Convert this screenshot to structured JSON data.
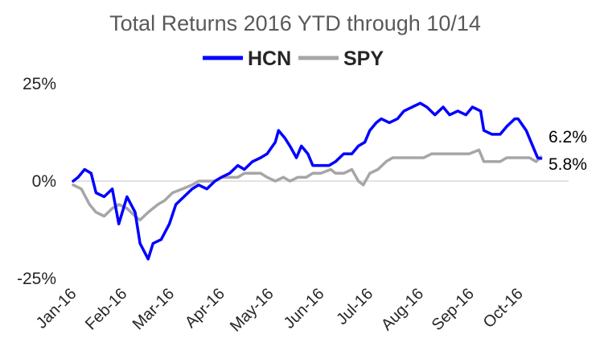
{
  "chart_data": {
    "type": "line",
    "title": "Total Returns 2016 YTD through 10/14",
    "xlabel": "",
    "ylabel": "",
    "y_ticks": [
      "25%",
      "0%",
      "-25%"
    ],
    "y_tick_values": [
      25,
      0,
      -25
    ],
    "ylim": [
      -25,
      25
    ],
    "x_ticks": [
      "Jan-16",
      "Feb-16",
      "Mar-16",
      "Apr-16",
      "May-16",
      "Jun-16",
      "Jul-16",
      "Aug-16",
      "Sep-16",
      "Oct-16"
    ],
    "xlim": [
      "2016-01-01",
      "2016-10-31"
    ],
    "legend_position": "top",
    "grid": false,
    "series": [
      {
        "name": "HCN",
        "color": "#0000ff",
        "end_label": "5.8%",
        "points": [
          [
            "2016-01-01",
            0
          ],
          [
            "2016-01-04",
            1
          ],
          [
            "2016-01-08",
            3
          ],
          [
            "2016-01-12",
            2
          ],
          [
            "2016-01-15",
            -3
          ],
          [
            "2016-01-20",
            -4
          ],
          [
            "2016-01-25",
            -2
          ],
          [
            "2016-01-29",
            -11
          ],
          [
            "2016-02-03",
            -4
          ],
          [
            "2016-02-08",
            -8
          ],
          [
            "2016-02-11",
            -16
          ],
          [
            "2016-02-16",
            -20
          ],
          [
            "2016-02-19",
            -16
          ],
          [
            "2016-02-24",
            -15
          ],
          [
            "2016-02-29",
            -11
          ],
          [
            "2016-03-04",
            -6
          ],
          [
            "2016-03-09",
            -4
          ],
          [
            "2016-03-14",
            -2
          ],
          [
            "2016-03-18",
            -1
          ],
          [
            "2016-03-23",
            -2
          ],
          [
            "2016-03-28",
            0
          ],
          [
            "2016-04-01",
            1
          ],
          [
            "2016-04-06",
            2
          ],
          [
            "2016-04-11",
            4
          ],
          [
            "2016-04-15",
            3
          ],
          [
            "2016-04-20",
            5
          ],
          [
            "2016-04-25",
            6
          ],
          [
            "2016-04-29",
            7
          ],
          [
            "2016-05-04",
            10
          ],
          [
            "2016-05-06",
            13
          ],
          [
            "2016-05-10",
            11
          ],
          [
            "2016-05-13",
            9
          ],
          [
            "2016-05-17",
            6
          ],
          [
            "2016-05-20",
            9
          ],
          [
            "2016-05-24",
            7
          ],
          [
            "2016-05-27",
            4
          ],
          [
            "2016-06-01",
            4
          ],
          [
            "2016-06-06",
            4
          ],
          [
            "2016-06-10",
            5
          ],
          [
            "2016-06-15",
            7
          ],
          [
            "2016-06-20",
            7
          ],
          [
            "2016-06-24",
            9
          ],
          [
            "2016-06-28",
            10
          ],
          [
            "2016-07-01",
            13
          ],
          [
            "2016-07-05",
            15
          ],
          [
            "2016-07-08",
            16
          ],
          [
            "2016-07-13",
            15
          ],
          [
            "2016-07-18",
            16
          ],
          [
            "2016-07-22",
            18
          ],
          [
            "2016-07-27",
            19
          ],
          [
            "2016-08-01",
            20
          ],
          [
            "2016-08-05",
            19
          ],
          [
            "2016-08-10",
            17
          ],
          [
            "2016-08-15",
            19
          ],
          [
            "2016-08-19",
            17
          ],
          [
            "2016-08-24",
            18
          ],
          [
            "2016-08-29",
            17
          ],
          [
            "2016-09-02",
            19
          ],
          [
            "2016-09-07",
            18
          ],
          [
            "2016-09-09",
            13
          ],
          [
            "2016-09-14",
            12
          ],
          [
            "2016-09-19",
            12
          ],
          [
            "2016-09-23",
            14
          ],
          [
            "2016-09-28",
            16
          ],
          [
            "2016-09-30",
            16
          ],
          [
            "2016-10-05",
            13
          ],
          [
            "2016-10-10",
            8
          ],
          [
            "2016-10-12",
            6
          ],
          [
            "2016-10-14",
            5.8
          ]
        ]
      },
      {
        "name": "SPY",
        "color": "#a6a6a6",
        "end_label": "6.2%",
        "points": [
          [
            "2016-01-01",
            -1
          ],
          [
            "2016-01-06",
            -2
          ],
          [
            "2016-01-11",
            -6
          ],
          [
            "2016-01-15",
            -8
          ],
          [
            "2016-01-20",
            -9
          ],
          [
            "2016-01-25",
            -7
          ],
          [
            "2016-01-29",
            -6
          ],
          [
            "2016-02-03",
            -7
          ],
          [
            "2016-02-08",
            -9
          ],
          [
            "2016-02-11",
            -10
          ],
          [
            "2016-02-16",
            -8
          ],
          [
            "2016-02-22",
            -6
          ],
          [
            "2016-02-26",
            -5
          ],
          [
            "2016-03-02",
            -3
          ],
          [
            "2016-03-08",
            -2
          ],
          [
            "2016-03-14",
            -1
          ],
          [
            "2016-03-18",
            0
          ],
          [
            "2016-03-23",
            0
          ],
          [
            "2016-03-28",
            0
          ],
          [
            "2016-04-01",
            1
          ],
          [
            "2016-04-06",
            1
          ],
          [
            "2016-04-11",
            1
          ],
          [
            "2016-04-15",
            2
          ],
          [
            "2016-04-20",
            2
          ],
          [
            "2016-04-25",
            2
          ],
          [
            "2016-04-29",
            1
          ],
          [
            "2016-05-04",
            0
          ],
          [
            "2016-05-09",
            1
          ],
          [
            "2016-05-13",
            0
          ],
          [
            "2016-05-18",
            1
          ],
          [
            "2016-05-23",
            1
          ],
          [
            "2016-05-27",
            2
          ],
          [
            "2016-06-01",
            2
          ],
          [
            "2016-06-07",
            3
          ],
          [
            "2016-06-10",
            2
          ],
          [
            "2016-06-15",
            2
          ],
          [
            "2016-06-20",
            3
          ],
          [
            "2016-06-24",
            0
          ],
          [
            "2016-06-27",
            -1
          ],
          [
            "2016-07-01",
            2
          ],
          [
            "2016-07-06",
            3
          ],
          [
            "2016-07-11",
            5
          ],
          [
            "2016-07-15",
            6
          ],
          [
            "2016-07-20",
            6
          ],
          [
            "2016-07-25",
            6
          ],
          [
            "2016-07-29",
            6
          ],
          [
            "2016-08-03",
            6
          ],
          [
            "2016-08-08",
            7
          ],
          [
            "2016-08-12",
            7
          ],
          [
            "2016-08-17",
            7
          ],
          [
            "2016-08-22",
            7
          ],
          [
            "2016-08-26",
            7
          ],
          [
            "2016-08-31",
            7
          ],
          [
            "2016-09-06",
            8
          ],
          [
            "2016-09-09",
            5
          ],
          [
            "2016-09-14",
            5
          ],
          [
            "2016-09-19",
            5
          ],
          [
            "2016-09-23",
            6
          ],
          [
            "2016-09-28",
            6
          ],
          [
            "2016-10-03",
            6
          ],
          [
            "2016-10-07",
            6
          ],
          [
            "2016-10-11",
            5
          ],
          [
            "2016-10-14",
            6.2
          ]
        ]
      }
    ]
  }
}
